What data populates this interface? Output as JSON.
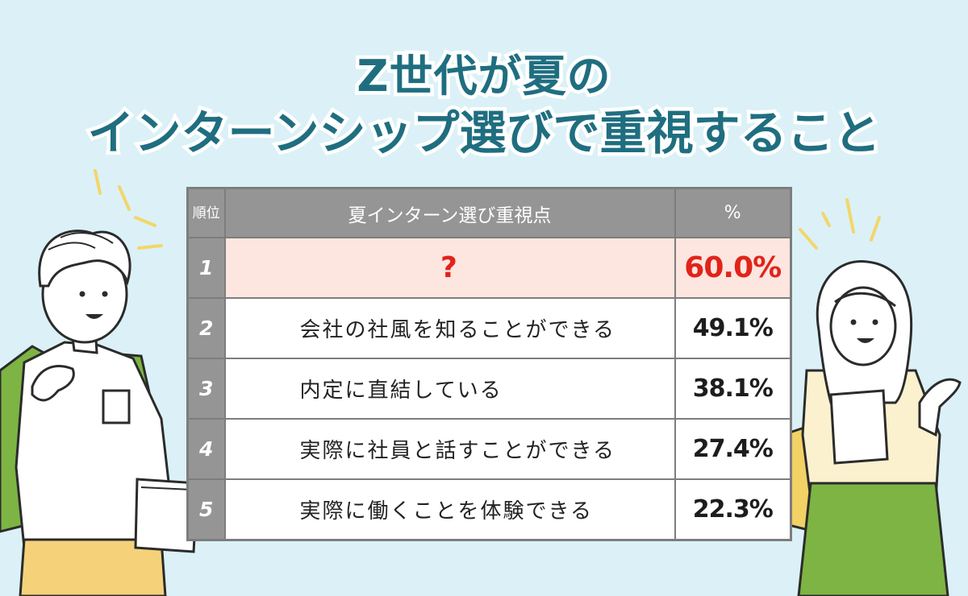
{
  "title": {
    "line1": "Z世代が夏の",
    "line2": "インターンシップ選びで重視すること"
  },
  "table": {
    "headers": {
      "rank": "順位",
      "item": "夏インターン選び重視点",
      "percent": "%"
    },
    "rows": [
      {
        "rank": "1",
        "item": "?",
        "percent": "60.0%"
      },
      {
        "rank": "2",
        "item": "会社の社風を知ることができる",
        "percent": "49.1%"
      },
      {
        "rank": "3",
        "item": "内定に直結している",
        "percent": "38.1%"
      },
      {
        "rank": "4",
        "item": "実際に社員と話すことができる",
        "percent": "27.4%"
      },
      {
        "rank": "5",
        "item": "実際に働くことを体験できる",
        "percent": "22.3%"
      }
    ]
  },
  "colors": {
    "background": "#dbf1f7",
    "title": "#1f6e80",
    "header": "#959595",
    "highlight_row": "#fce6df",
    "accent_red": "#e2231a",
    "backpack_green": "#7db443",
    "pants_yellow": "#f5d27a"
  },
  "illustrations": {
    "left": "male-student-with-backpack-and-laptop",
    "right": "female-student-holding-notebook"
  }
}
